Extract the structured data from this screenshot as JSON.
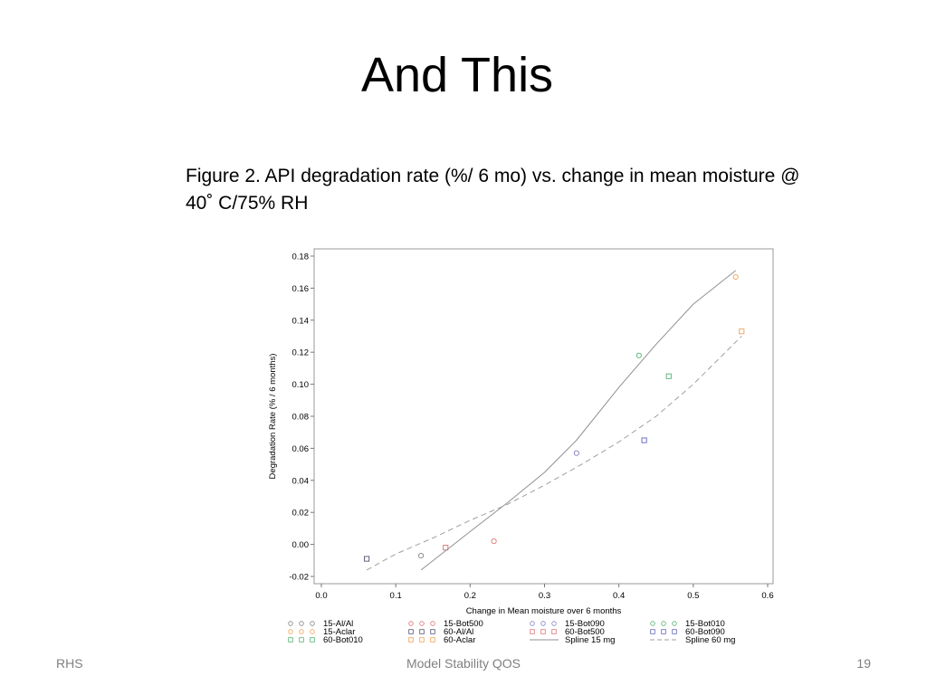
{
  "slide": {
    "title": "And This",
    "caption_line1": "Figure 2. API degradation rate (%/ 6 mo) vs. change in mean moisture @",
    "caption_line2": "40˚  C/75% RH"
  },
  "footer": {
    "left": "RHS",
    "center": "Model Stability QOS",
    "right": "19"
  },
  "chart_data": {
    "type": "scatter",
    "xlabel": "Change in Mean moisture over 6 months",
    "ylabel": "Degradation Rate (% / 6 months)",
    "xlim": [
      0.0,
      0.6
    ],
    "ylim": [
      -0.02,
      0.18
    ],
    "xticks": [
      "0.0",
      "0.1",
      "0.2",
      "0.3",
      "0.4",
      "0.5",
      "0.6"
    ],
    "yticks": [
      "-0.02",
      "0.00",
      "0.02",
      "0.04",
      "0.06",
      "0.08",
      "0.10",
      "0.12",
      "0.14",
      "0.16",
      "0.18"
    ],
    "grid": false,
    "legend_position": "bottom",
    "series": [
      {
        "name": "15-Al/Al",
        "marker": "circle",
        "color": "#7f7f7f",
        "points": [
          [
            0.134,
            -0.007
          ]
        ]
      },
      {
        "name": "15-Bot500",
        "marker": "circle",
        "color": "#e07070",
        "points": [
          [
            0.232,
            0.002
          ]
        ]
      },
      {
        "name": "15-Bot090",
        "marker": "circle",
        "color": "#8080c0",
        "points": [
          [
            0.343,
            0.057
          ]
        ]
      },
      {
        "name": "15-Bot010",
        "marker": "circle",
        "color": "#50b070",
        "points": [
          [
            0.427,
            0.118
          ]
        ]
      },
      {
        "name": "15-Aclar",
        "marker": "circle",
        "color": "#f0a050",
        "points": [
          [
            0.557,
            0.167
          ]
        ]
      },
      {
        "name": "60-Al/Al",
        "marker": "square",
        "color": "#505070",
        "points": [
          [
            0.061,
            -0.009
          ]
        ]
      },
      {
        "name": "60-Bot500",
        "marker": "square",
        "color": "#e07070",
        "points": [
          [
            0.167,
            -0.002
          ]
        ]
      },
      {
        "name": "60-Bot090",
        "marker": "square",
        "color": "#6060c0",
        "points": [
          [
            0.434,
            0.065
          ]
        ]
      },
      {
        "name": "60-Bot010",
        "marker": "square",
        "color": "#50b070",
        "points": [
          [
            0.467,
            0.105
          ]
        ]
      },
      {
        "name": "60-Aclar",
        "marker": "square",
        "color": "#f0a050",
        "points": [
          [
            0.565,
            0.133
          ]
        ]
      },
      {
        "name": "Spline 15 mg",
        "line": "solid",
        "color": "#909090",
        "points": [
          [
            0.134,
            -0.016
          ],
          [
            0.2,
            0.008
          ],
          [
            0.25,
            0.026
          ],
          [
            0.3,
            0.045
          ],
          [
            0.343,
            0.065
          ],
          [
            0.4,
            0.098
          ],
          [
            0.45,
            0.125
          ],
          [
            0.5,
            0.15
          ],
          [
            0.557,
            0.171
          ]
        ]
      },
      {
        "name": "Spline 60 mg",
        "line": "dashed",
        "color": "#a0a0a0",
        "points": [
          [
            0.061,
            -0.016
          ],
          [
            0.1,
            -0.006
          ],
          [
            0.15,
            0.004
          ],
          [
            0.2,
            0.015
          ],
          [
            0.25,
            0.025
          ],
          [
            0.3,
            0.037
          ],
          [
            0.35,
            0.05
          ],
          [
            0.4,
            0.064
          ],
          [
            0.45,
            0.08
          ],
          [
            0.5,
            0.1
          ],
          [
            0.565,
            0.13
          ]
        ]
      }
    ],
    "legend_rows": [
      [
        "15-Al/Al",
        "15-Bot500",
        "15-Bot090",
        "15-Bot010"
      ],
      [
        "15-Aclar",
        "60-Al/Al",
        "60-Bot500",
        "60-Bot090"
      ],
      [
        "60-Bot010",
        "60-Aclar",
        "Spline 15 mg",
        "Spline 60 mg"
      ]
    ]
  }
}
